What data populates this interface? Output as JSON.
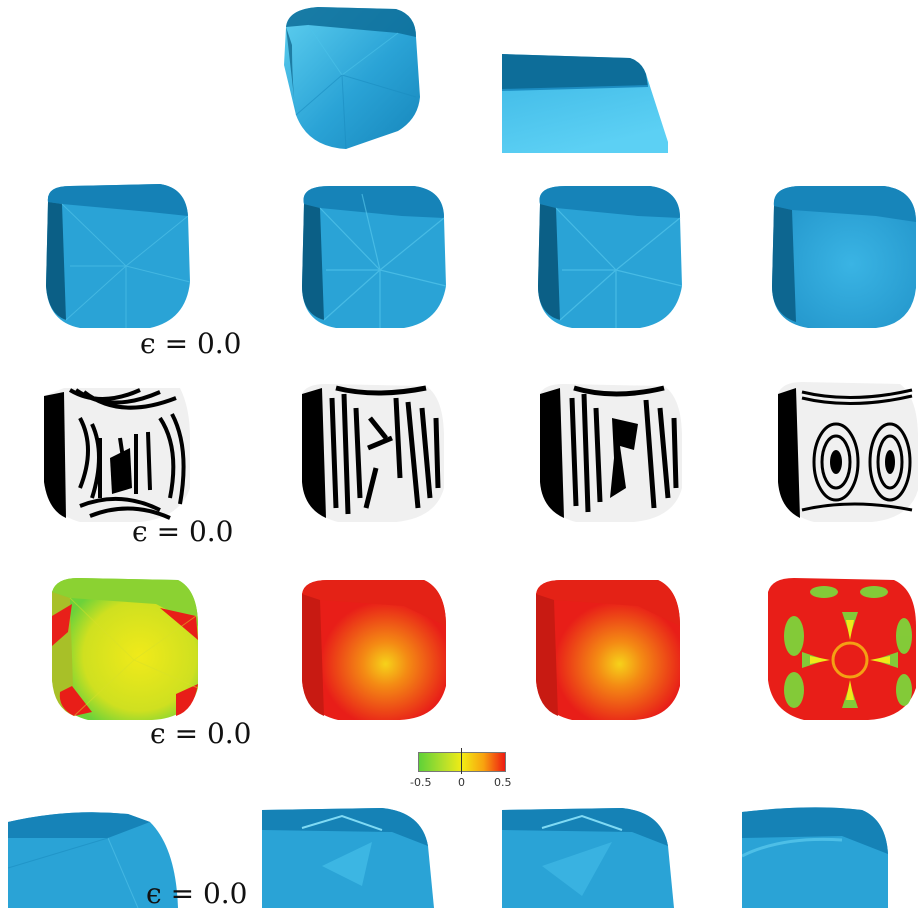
{
  "figure": {
    "rows": [
      {
        "row": "base-surface",
        "label": ""
      },
      {
        "row": "shaded-surfaces",
        "label": "ϵ = 0.0"
      },
      {
        "row": "zebra-stripes",
        "label": "ϵ = 0.0"
      },
      {
        "row": "curvature-map",
        "label": "ϵ = 0.0"
      },
      {
        "row": "zoomed-detail",
        "label": "ϵ = 0.0"
      }
    ],
    "colorbar": {
      "min_label": "-0.5",
      "mid_label": "0",
      "max_label": "0.5",
      "colors": [
        "#5fd238",
        "#b8e02a",
        "#f2ec14",
        "#f8a20f",
        "#ee1a12"
      ]
    },
    "colors": {
      "surface_blue": "#2aa3d6",
      "surface_highlight": "#5fd0f0",
      "surface_shadow": "#0b5f86",
      "zebra_black": "#000000",
      "zebra_white": "#f0f0f0"
    }
  }
}
